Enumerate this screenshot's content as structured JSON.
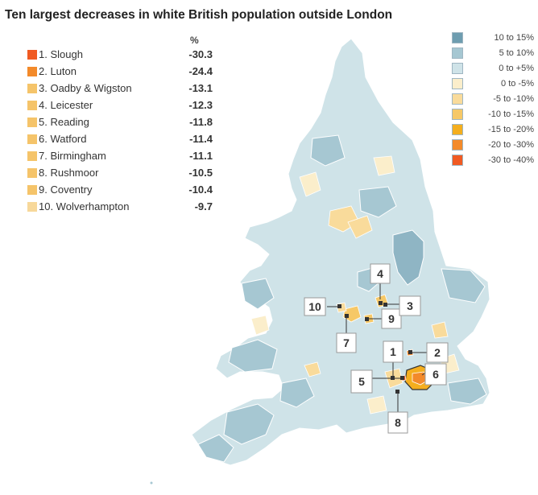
{
  "title": "Ten largest decreases in white British population outside London",
  "percent_header": "%",
  "rankings": [
    {
      "label": "1. Slough",
      "value": "-30.3",
      "color": "#f05a22"
    },
    {
      "label": "2. Luton",
      "value": "-24.4",
      "color": "#f38a2a"
    },
    {
      "label": "3. Oadby & Wigston",
      "value": "-13.1",
      "color": "#f5c46a"
    },
    {
      "label": "4. Leicester",
      "value": "-12.3",
      "color": "#f5c46a"
    },
    {
      "label": "5. Reading",
      "value": "-11.8",
      "color": "#f5c46a"
    },
    {
      "label": "6. Watford",
      "value": "-11.4",
      "color": "#f5c46a"
    },
    {
      "label": "7. Birmingham",
      "value": "-11.1",
      "color": "#f5c46a"
    },
    {
      "label": "8. Rushmoor",
      "value": "-10.5",
      "color": "#f5c46a"
    },
    {
      "label": "9. Coventry",
      "value": "-10.4",
      "color": "#f5c46a"
    },
    {
      "label": "10. Wolverhampton",
      "value": "-9.7",
      "color": "#f7d89a"
    }
  ],
  "legend": [
    {
      "label": "10 to 15%",
      "color": "#6e9db0"
    },
    {
      "label": "5 to 10%",
      "color": "#a6c7d2"
    },
    {
      "label": "0 to +5%",
      "color": "#cfe3e8"
    },
    {
      "label": "0 to -5%",
      "color": "#fbeecb"
    },
    {
      "label": "-5 to -10%",
      "color": "#f9db9b"
    },
    {
      "label": "-10 to -15%",
      "color": "#f6c867"
    },
    {
      "label": "-15 to -20%",
      "color": "#f4ae1e"
    },
    {
      "label": "-20 to -30%",
      "color": "#f38a2a"
    },
    {
      "label": "-30 to -40%",
      "color": "#f05a22"
    }
  ],
  "callouts": [
    "1",
    "2",
    "3",
    "4",
    "5",
    "6",
    "7",
    "8",
    "9",
    "10"
  ]
}
